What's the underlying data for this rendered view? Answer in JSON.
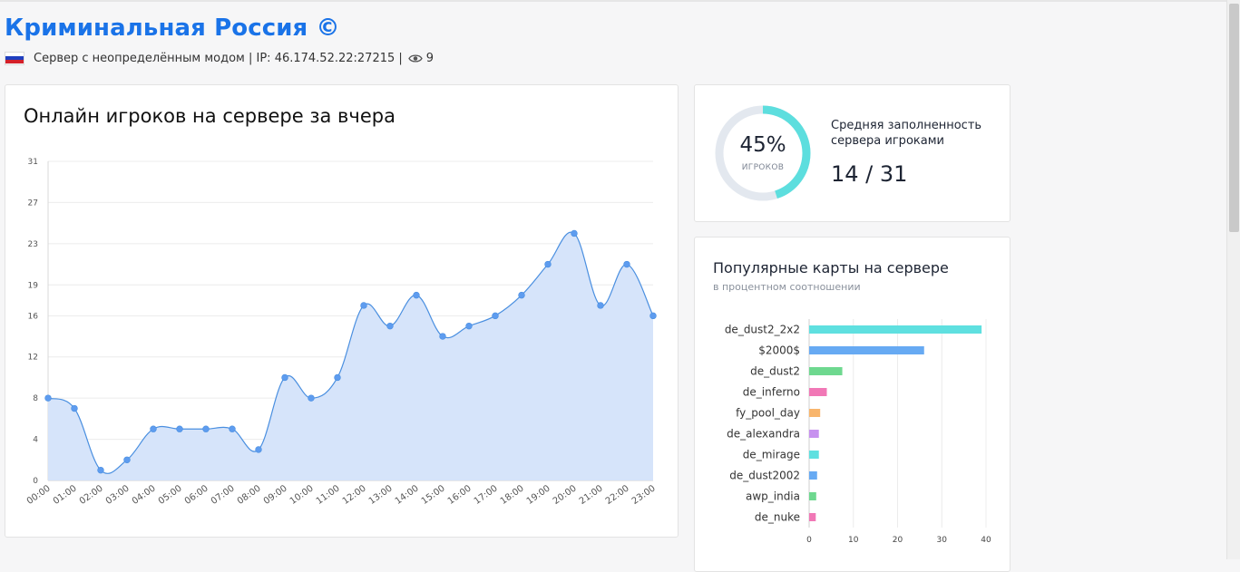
{
  "server": {
    "title": "Криминальная Россия ©",
    "info": "Сервер с неопределённым модом | IP: 46.174.52.22:27215 |",
    "views": "9",
    "flag_colors": [
      "#ffffff",
      "#1f3fbf",
      "#d4202a"
    ]
  },
  "fill": {
    "percent": "45%",
    "percent_value": 45,
    "percent_label": "ИГРОКОВ",
    "label": "Средняя заполненность сервера игроками",
    "value": "14 / 31",
    "colors": {
      "active": "#5ddede",
      "track": "#e3e8ef"
    }
  },
  "maps": {
    "title": "Популярные карты на сервере",
    "subtitle": "в процентном соотношении"
  },
  "chart_data": [
    {
      "type": "area",
      "title": "Онлайн игроков на сервере за вчера",
      "x": [
        "00:00",
        "01:00",
        "02:00",
        "03:00",
        "04:00",
        "05:00",
        "06:00",
        "07:00",
        "08:00",
        "09:00",
        "10:00",
        "11:00",
        "12:00",
        "13:00",
        "14:00",
        "15:00",
        "16:00",
        "17:00",
        "18:00",
        "19:00",
        "20:00",
        "21:00",
        "22:00",
        "23:00"
      ],
      "values": [
        8,
        7,
        1,
        2,
        5,
        5,
        5,
        5,
        3,
        10,
        8,
        10,
        17,
        15,
        18,
        14,
        15,
        16,
        18,
        21,
        24,
        17,
        21,
        16
      ],
      "yticks": [
        0,
        4,
        8,
        12,
        16,
        19,
        23,
        27,
        31
      ],
      "ylim": [
        0,
        31
      ],
      "grid": true,
      "colors": {
        "line": "#4a8fe0",
        "fill": "#d4e3fa",
        "point": "#5e9cef"
      }
    },
    {
      "type": "bar",
      "orientation": "horizontal",
      "categories": [
        "de_dust2_2x2",
        "$2000$",
        "de_dust2",
        "de_inferno",
        "fy_pool_day",
        "de_alexandra",
        "de_mirage",
        "de_dust2002",
        "awp_india",
        "de_nuke"
      ],
      "values": [
        39,
        26,
        7.5,
        4,
        2.5,
        2.2,
        2.2,
        1.8,
        1.6,
        1.5
      ],
      "xticks": [
        0,
        10,
        20,
        30,
        40
      ],
      "xlim": [
        0,
        40
      ],
      "grid": true,
      "colors": [
        "#5fe0e0",
        "#67aaf3",
        "#6ed88f",
        "#f178b6",
        "#f8b56c",
        "#c791ef",
        "#5fe0e0",
        "#67aaf3",
        "#6ed88f",
        "#f178b6"
      ]
    }
  ]
}
